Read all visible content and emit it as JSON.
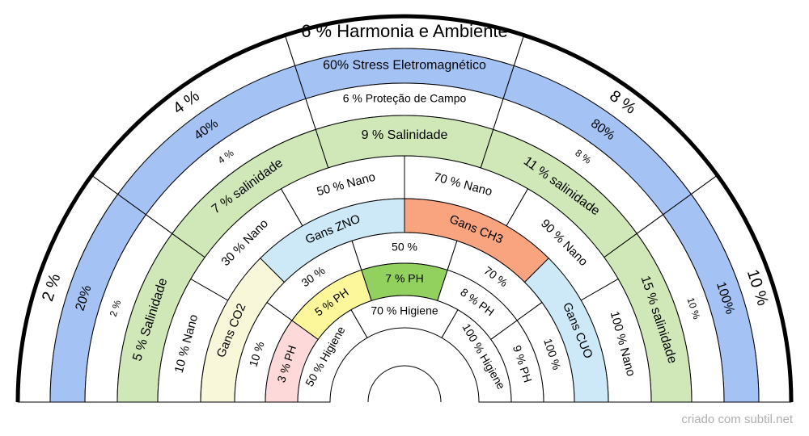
{
  "rings": [
    {
      "segments": [
        {
          "label": "2 %"
        },
        {
          "label": "4 %"
        },
        {
          "label": "6 % Harmonia e Ambiente"
        },
        {
          "label": "8 %"
        },
        {
          "label": "10 %"
        }
      ]
    },
    {
      "segments": [
        {
          "label": "20%"
        },
        {
          "label": "40%"
        },
        {
          "label": "60% Stress Eletromagnético"
        },
        {
          "label": "80%"
        },
        {
          "label": "100%"
        }
      ]
    },
    {
      "segments": [
        {
          "label": "2 %"
        },
        {
          "label": "4 %"
        },
        {
          "label": "6 % Proteção de Campo"
        },
        {
          "label": "8 %"
        },
        {
          "label": "10 %"
        }
      ]
    },
    {
      "segments": [
        {
          "label": "5 %  Salinidade"
        },
        {
          "label": "7 % salinidade"
        },
        {
          "label": "9 % Salinidade"
        },
        {
          "label": "11 % salinidade"
        },
        {
          "label": "15 % salinidade"
        }
      ]
    },
    {
      "segments": [
        {
          "label": "10 % Nano"
        },
        {
          "label": "30 % Nano"
        },
        {
          "label": "50 % Nano"
        },
        {
          "label": "70 % Nano"
        },
        {
          "label": "90 % Nano"
        },
        {
          "label": "100 % Nano"
        }
      ]
    },
    {
      "segments": [
        {
          "label": "Gans CO2"
        },
        {
          "label": "Gans ZNO"
        },
        {
          "label": "Gans CH3"
        },
        {
          "label": "Gans CUO"
        }
      ]
    },
    {
      "segments": [
        {
          "label": "10 %"
        },
        {
          "label": "30 %"
        },
        {
          "label": "50 %"
        },
        {
          "label": "70 %"
        },
        {
          "label": "100 %"
        }
      ]
    },
    {
      "segments": [
        {
          "label": "3 % PH"
        },
        {
          "label": "5 % PH"
        },
        {
          "label": "7 % PH"
        },
        {
          "label": "8 % PH"
        },
        {
          "label": "9 % PH"
        }
      ]
    },
    {
      "segments": [
        {
          "label": "50 % Higiene"
        },
        {
          "label": "70 % Higiene"
        },
        {
          "label": "100 % Higiene"
        }
      ]
    }
  ],
  "footer": "criado com subtil.net"
}
